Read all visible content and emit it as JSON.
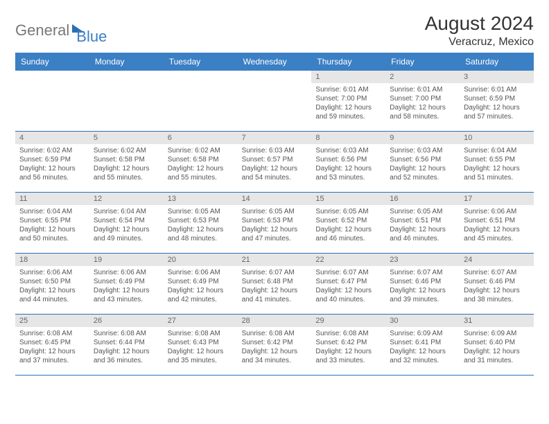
{
  "logo": {
    "word1": "General",
    "word2": "Blue"
  },
  "header": {
    "month_title": "August 2024",
    "location": "Veracruz, Mexico"
  },
  "colors": {
    "header_bg": "#3b7fc4",
    "header_text": "#ffffff",
    "daynum_bg": "#e6e6e6",
    "border": "#2a6fb5",
    "body_text": "#555555"
  },
  "column_headers": [
    "Sunday",
    "Monday",
    "Tuesday",
    "Wednesday",
    "Thursday",
    "Friday",
    "Saturday"
  ],
  "weeks": [
    {
      "cells": [
        {
          "empty": true
        },
        {
          "empty": true
        },
        {
          "empty": true
        },
        {
          "empty": true
        },
        {
          "daynum": "1",
          "sunrise": "Sunrise: 6:01 AM",
          "sunset": "Sunset: 7:00 PM",
          "dl1": "Daylight: 12 hours",
          "dl2": "and 59 minutes."
        },
        {
          "daynum": "2",
          "sunrise": "Sunrise: 6:01 AM",
          "sunset": "Sunset: 7:00 PM",
          "dl1": "Daylight: 12 hours",
          "dl2": "and 58 minutes."
        },
        {
          "daynum": "3",
          "sunrise": "Sunrise: 6:01 AM",
          "sunset": "Sunset: 6:59 PM",
          "dl1": "Daylight: 12 hours",
          "dl2": "and 57 minutes."
        }
      ]
    },
    {
      "cells": [
        {
          "daynum": "4",
          "sunrise": "Sunrise: 6:02 AM",
          "sunset": "Sunset: 6:59 PM",
          "dl1": "Daylight: 12 hours",
          "dl2": "and 56 minutes."
        },
        {
          "daynum": "5",
          "sunrise": "Sunrise: 6:02 AM",
          "sunset": "Sunset: 6:58 PM",
          "dl1": "Daylight: 12 hours",
          "dl2": "and 55 minutes."
        },
        {
          "daynum": "6",
          "sunrise": "Sunrise: 6:02 AM",
          "sunset": "Sunset: 6:58 PM",
          "dl1": "Daylight: 12 hours",
          "dl2": "and 55 minutes."
        },
        {
          "daynum": "7",
          "sunrise": "Sunrise: 6:03 AM",
          "sunset": "Sunset: 6:57 PM",
          "dl1": "Daylight: 12 hours",
          "dl2": "and 54 minutes."
        },
        {
          "daynum": "8",
          "sunrise": "Sunrise: 6:03 AM",
          "sunset": "Sunset: 6:56 PM",
          "dl1": "Daylight: 12 hours",
          "dl2": "and 53 minutes."
        },
        {
          "daynum": "9",
          "sunrise": "Sunrise: 6:03 AM",
          "sunset": "Sunset: 6:56 PM",
          "dl1": "Daylight: 12 hours",
          "dl2": "and 52 minutes."
        },
        {
          "daynum": "10",
          "sunrise": "Sunrise: 6:04 AM",
          "sunset": "Sunset: 6:55 PM",
          "dl1": "Daylight: 12 hours",
          "dl2": "and 51 minutes."
        }
      ]
    },
    {
      "cells": [
        {
          "daynum": "11",
          "sunrise": "Sunrise: 6:04 AM",
          "sunset": "Sunset: 6:55 PM",
          "dl1": "Daylight: 12 hours",
          "dl2": "and 50 minutes."
        },
        {
          "daynum": "12",
          "sunrise": "Sunrise: 6:04 AM",
          "sunset": "Sunset: 6:54 PM",
          "dl1": "Daylight: 12 hours",
          "dl2": "and 49 minutes."
        },
        {
          "daynum": "13",
          "sunrise": "Sunrise: 6:05 AM",
          "sunset": "Sunset: 6:53 PM",
          "dl1": "Daylight: 12 hours",
          "dl2": "and 48 minutes."
        },
        {
          "daynum": "14",
          "sunrise": "Sunrise: 6:05 AM",
          "sunset": "Sunset: 6:53 PM",
          "dl1": "Daylight: 12 hours",
          "dl2": "and 47 minutes."
        },
        {
          "daynum": "15",
          "sunrise": "Sunrise: 6:05 AM",
          "sunset": "Sunset: 6:52 PM",
          "dl1": "Daylight: 12 hours",
          "dl2": "and 46 minutes."
        },
        {
          "daynum": "16",
          "sunrise": "Sunrise: 6:05 AM",
          "sunset": "Sunset: 6:51 PM",
          "dl1": "Daylight: 12 hours",
          "dl2": "and 46 minutes."
        },
        {
          "daynum": "17",
          "sunrise": "Sunrise: 6:06 AM",
          "sunset": "Sunset: 6:51 PM",
          "dl1": "Daylight: 12 hours",
          "dl2": "and 45 minutes."
        }
      ]
    },
    {
      "cells": [
        {
          "daynum": "18",
          "sunrise": "Sunrise: 6:06 AM",
          "sunset": "Sunset: 6:50 PM",
          "dl1": "Daylight: 12 hours",
          "dl2": "and 44 minutes."
        },
        {
          "daynum": "19",
          "sunrise": "Sunrise: 6:06 AM",
          "sunset": "Sunset: 6:49 PM",
          "dl1": "Daylight: 12 hours",
          "dl2": "and 43 minutes."
        },
        {
          "daynum": "20",
          "sunrise": "Sunrise: 6:06 AM",
          "sunset": "Sunset: 6:49 PM",
          "dl1": "Daylight: 12 hours",
          "dl2": "and 42 minutes."
        },
        {
          "daynum": "21",
          "sunrise": "Sunrise: 6:07 AM",
          "sunset": "Sunset: 6:48 PM",
          "dl1": "Daylight: 12 hours",
          "dl2": "and 41 minutes."
        },
        {
          "daynum": "22",
          "sunrise": "Sunrise: 6:07 AM",
          "sunset": "Sunset: 6:47 PM",
          "dl1": "Daylight: 12 hours",
          "dl2": "and 40 minutes."
        },
        {
          "daynum": "23",
          "sunrise": "Sunrise: 6:07 AM",
          "sunset": "Sunset: 6:46 PM",
          "dl1": "Daylight: 12 hours",
          "dl2": "and 39 minutes."
        },
        {
          "daynum": "24",
          "sunrise": "Sunrise: 6:07 AM",
          "sunset": "Sunset: 6:46 PM",
          "dl1": "Daylight: 12 hours",
          "dl2": "and 38 minutes."
        }
      ]
    },
    {
      "cells": [
        {
          "daynum": "25",
          "sunrise": "Sunrise: 6:08 AM",
          "sunset": "Sunset: 6:45 PM",
          "dl1": "Daylight: 12 hours",
          "dl2": "and 37 minutes."
        },
        {
          "daynum": "26",
          "sunrise": "Sunrise: 6:08 AM",
          "sunset": "Sunset: 6:44 PM",
          "dl1": "Daylight: 12 hours",
          "dl2": "and 36 minutes."
        },
        {
          "daynum": "27",
          "sunrise": "Sunrise: 6:08 AM",
          "sunset": "Sunset: 6:43 PM",
          "dl1": "Daylight: 12 hours",
          "dl2": "and 35 minutes."
        },
        {
          "daynum": "28",
          "sunrise": "Sunrise: 6:08 AM",
          "sunset": "Sunset: 6:42 PM",
          "dl1": "Daylight: 12 hours",
          "dl2": "and 34 minutes."
        },
        {
          "daynum": "29",
          "sunrise": "Sunrise: 6:08 AM",
          "sunset": "Sunset: 6:42 PM",
          "dl1": "Daylight: 12 hours",
          "dl2": "and 33 minutes."
        },
        {
          "daynum": "30",
          "sunrise": "Sunrise: 6:09 AM",
          "sunset": "Sunset: 6:41 PM",
          "dl1": "Daylight: 12 hours",
          "dl2": "and 32 minutes."
        },
        {
          "daynum": "31",
          "sunrise": "Sunrise: 6:09 AM",
          "sunset": "Sunset: 6:40 PM",
          "dl1": "Daylight: 12 hours",
          "dl2": "and 31 minutes."
        }
      ]
    }
  ]
}
